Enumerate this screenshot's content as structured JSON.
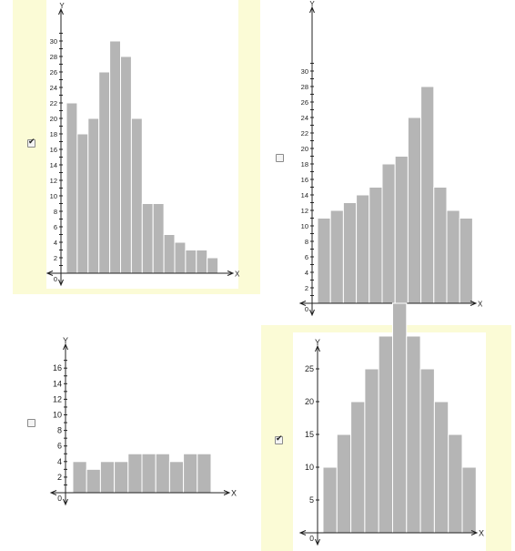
{
  "options": [
    {
      "id": "opt1",
      "checked": true,
      "chart_data": {
        "type": "bar",
        "xlabel": "X",
        "ylabel": "Y",
        "ylim": [
          0,
          31
        ],
        "ytick_step": 1,
        "y_ticks_start": 2,
        "origin_label": "0",
        "values": [
          22,
          18,
          20,
          26,
          30,
          28,
          20,
          9,
          9,
          5,
          4,
          3,
          3,
          2
        ]
      }
    },
    {
      "id": "opt2",
      "checked": false,
      "chart_data": {
        "type": "bar",
        "xlabel": "X",
        "ylabel": "Y",
        "ylim": [
          0,
          31
        ],
        "ytick_step": 1,
        "y_ticks_start": 2,
        "origin_label": "0",
        "values": [
          11,
          12,
          13,
          14,
          15,
          18,
          19,
          24,
          28,
          15,
          12,
          11
        ]
      }
    },
    {
      "id": "opt3",
      "checked": false,
      "chart_data": {
        "type": "bar",
        "xlabel": "X",
        "ylabel": "Y",
        "ylim": [
          0,
          17
        ],
        "ytick_step": 1,
        "y_ticks_start": 2,
        "origin_label": "0",
        "values": [
          4,
          3,
          4,
          4,
          5,
          5,
          5,
          4,
          5,
          5
        ]
      }
    },
    {
      "id": "opt4",
      "checked": true,
      "chart_data": {
        "type": "bar",
        "xlabel": "X",
        "ylabel": "Y",
        "ylim": [
          0,
          54
        ],
        "ytick_step": 5,
        "y_ticks_start": 5,
        "origin_label": "0",
        "values": [
          10,
          15,
          20,
          25,
          30,
          35,
          30,
          25,
          20,
          15,
          10
        ]
      }
    }
  ],
  "colors": {
    "bar_fill": "#b5b5b5",
    "bar_stroke": "#ffffff",
    "axis": "#222222",
    "selected_bg": "#fbfbd6"
  }
}
